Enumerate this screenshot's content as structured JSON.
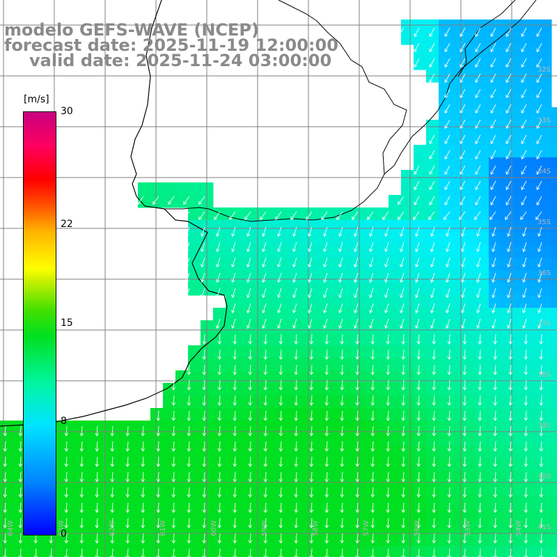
{
  "title": {
    "line1": "modelo GEFS-WAVE (NCEP)",
    "line2": "forecast date: 2025-11-19 12:00:00",
    "line3": "valid date: 2025-11-24 03:00:00"
  },
  "colorbar": {
    "unit": "[m/s]",
    "min": 0,
    "max": 30,
    "ticks": [
      {
        "value": 30,
        "label": "30"
      },
      {
        "value": 22,
        "label": "22"
      },
      {
        "value": 15,
        "label": "15"
      },
      {
        "value": 8,
        "label": "8"
      },
      {
        "value": 0,
        "label": "0"
      }
    ]
  },
  "map": {
    "variable": "wind speed and direction",
    "land_color": "#ffffff",
    "coastline_color": "#000000",
    "grid_color": "#7f7f7f",
    "arrow_color": "#ffffff",
    "lat_labels": [
      "32S",
      "33S",
      "34S",
      "35S",
      "36S",
      "37S",
      "38S",
      "39S",
      "40S",
      "41S"
    ],
    "lon_labels": [
      "64W",
      "63W",
      "62W",
      "61W",
      "60W",
      "59W",
      "58W",
      "57W",
      "56W",
      "55W",
      "54W"
    ]
  }
}
